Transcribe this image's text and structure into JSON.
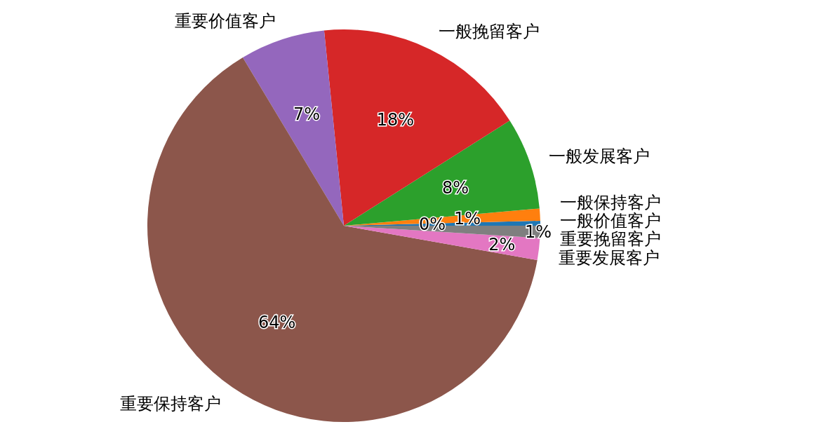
{
  "chart_data": {
    "type": "pie",
    "categories": [
      "一般价值客户",
      "一般保持客户",
      "一般发展客户",
      "一般挽留客户",
      "重要价值客户",
      "重要保持客户",
      "重要发展客户",
      "重要挽留客户"
    ],
    "values": [
      0.4,
      1.0,
      7.6,
      17.6,
      7.0,
      63.6,
      1.8,
      1.0
    ],
    "colors": [
      "#1f77b4",
      "#ff7f0e",
      "#2ca02c",
      "#d62728",
      "#9467bd",
      "#8c564b",
      "#e377c2",
      "#7f7f7f"
    ],
    "value_labels": [
      "0%",
      "1%",
      "8%",
      "18%",
      "7%",
      "64%",
      "2%",
      "1%"
    ]
  }
}
